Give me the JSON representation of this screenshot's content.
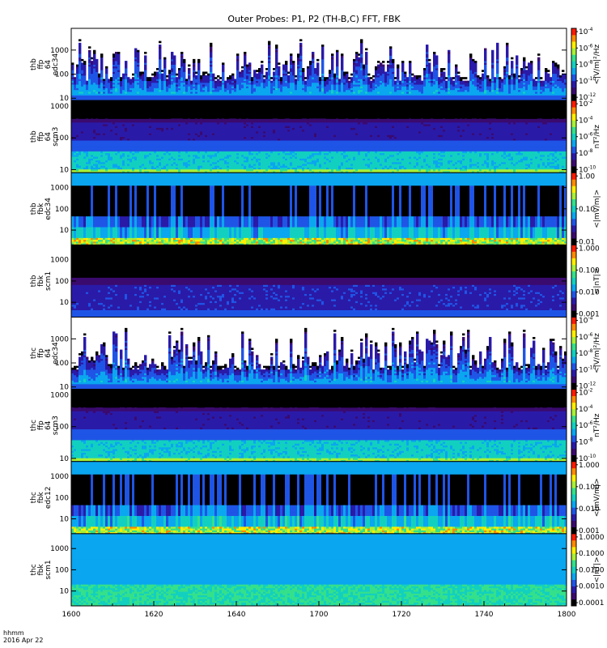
{
  "chart_data": {
    "type": "heatmap",
    "title": "Outer Probes: P1, P2 (TH-B,C) FFT, FBK",
    "x": {
      "ticks": [
        "1600",
        "1620",
        "1640",
        "1700",
        "1720",
        "1740",
        "1800"
      ],
      "minutes_range": [
        0,
        120
      ],
      "corner_label": "hhmm",
      "date_label": "2016 Apr 22"
    },
    "panels": [
      {
        "ylabel": [
          "thb",
          "ffp",
          "64",
          "edc34"
        ],
        "yticks": [
          "1000",
          "100",
          "10"
        ],
        "ylim_hz": [
          8,
          8000
        ],
        "style": "fft_e",
        "cbar_label": "<|V/m|²/Hz",
        "cbar_ticks": [
          {
            "mant": "10",
            "exp": "-4"
          },
          {
            "mant": "10",
            "exp": "-6"
          },
          {
            "mant": "10",
            "exp": "-8"
          },
          {
            "mant": "10",
            "exp": "-10"
          },
          {
            "mant": "10",
            "exp": "-12"
          }
        ]
      },
      {
        "ylabel": [
          "thb",
          "ffp",
          "64",
          "scm3"
        ],
        "yticks": [
          "1000",
          "100",
          "10"
        ],
        "ylim_hz": [
          8,
          1500
        ],
        "style": "fft_b",
        "cbar_label": "nT²/Hz",
        "cbar_ticks": [
          {
            "mant": "10",
            "exp": "-2"
          },
          {
            "mant": "10",
            "exp": "-4"
          },
          {
            "mant": "10",
            "exp": "-6"
          },
          {
            "mant": "10",
            "exp": "-8"
          },
          {
            "mant": "10",
            "exp": "-10"
          }
        ]
      },
      {
        "ylabel": [
          "thb",
          "fbk",
          "edc34"
        ],
        "yticks": [
          "1000",
          "100",
          "10"
        ],
        "ylim_hz": [
          2,
          5000
        ],
        "style": "fbk_e",
        "cbar_label": "<|mV/m|>",
        "cbar_ticks": [
          {
            "mant": "1.00",
            "exp": ""
          },
          {
            "mant": "0.10",
            "exp": ""
          },
          {
            "mant": "0.01",
            "exp": ""
          }
        ]
      },
      {
        "ylabel": [
          "thb",
          "fbk",
          "scm1"
        ],
        "yticks": [
          "1000",
          "100",
          "10"
        ],
        "ylim_hz": [
          2,
          5000
        ],
        "style": "fbk_b",
        "cbar_label": "<|nT|>",
        "cbar_ticks": [
          {
            "mant": "1.000",
            "exp": ""
          },
          {
            "mant": "0.100",
            "exp": ""
          },
          {
            "mant": "0.010",
            "exp": ""
          },
          {
            "mant": "0.001",
            "exp": ""
          }
        ]
      },
      {
        "ylabel": [
          "thc",
          "ffp",
          "64",
          "edc34"
        ],
        "yticks": [
          "1000",
          "100",
          "10"
        ],
        "ylim_hz": [
          8,
          8000
        ],
        "style": "fft_e",
        "cbar_label": "<|V/m|²/Hz",
        "cbar_ticks": [
          {
            "mant": "10",
            "exp": "-4"
          },
          {
            "mant": "10",
            "exp": "-6"
          },
          {
            "mant": "10",
            "exp": "-8"
          },
          {
            "mant": "10",
            "exp": "-10"
          },
          {
            "mant": "10",
            "exp": "-12"
          }
        ]
      },
      {
        "ylabel": [
          "thc",
          "ffp",
          "64",
          "scm3"
        ],
        "yticks": [
          "1000",
          "100",
          "10"
        ],
        "ylim_hz": [
          8,
          1500
        ],
        "style": "fft_b",
        "cbar_label": "nT²/Hz",
        "cbar_ticks": [
          {
            "mant": "10",
            "exp": "-2"
          },
          {
            "mant": "10",
            "exp": "-4"
          },
          {
            "mant": "10",
            "exp": "-6"
          },
          {
            "mant": "10",
            "exp": "-8"
          },
          {
            "mant": "10",
            "exp": "-10"
          }
        ]
      },
      {
        "ylabel": [
          "thc",
          "fbk",
          "edc12"
        ],
        "yticks": [
          "1000",
          "100",
          "10"
        ],
        "ylim_hz": [
          2,
          5000
        ],
        "style": "fbk_e2",
        "cbar_label": "<|mV/m|>",
        "cbar_ticks": [
          {
            "mant": "1.000",
            "exp": ""
          },
          {
            "mant": "0.100",
            "exp": ""
          },
          {
            "mant": "0.010",
            "exp": ""
          },
          {
            "mant": "0.001",
            "exp": ""
          }
        ]
      },
      {
        "ylabel": [
          "thc",
          "fbk",
          "scm1"
        ],
        "yticks": [
          "1000",
          "100",
          "10"
        ],
        "ylim_hz": [
          2,
          5000
        ],
        "style": "fbk_b2",
        "cbar_label": "<|nT|>",
        "cbar_ticks": [
          {
            "mant": "1.0000",
            "exp": ""
          },
          {
            "mant": "0.1000",
            "exp": ""
          },
          {
            "mant": "0.0100",
            "exp": ""
          },
          {
            "mant": "0.0010",
            "exp": ""
          },
          {
            "mant": "0.0001",
            "exp": ""
          }
        ]
      }
    ],
    "colormap": [
      "#000000",
      "#3a0a6e",
      "#2a1aa8",
      "#1f55e6",
      "#0aa6f0",
      "#12d0c0",
      "#35e08a",
      "#a8f038",
      "#ffee00",
      "#ff8a00",
      "#ff1a00"
    ]
  }
}
